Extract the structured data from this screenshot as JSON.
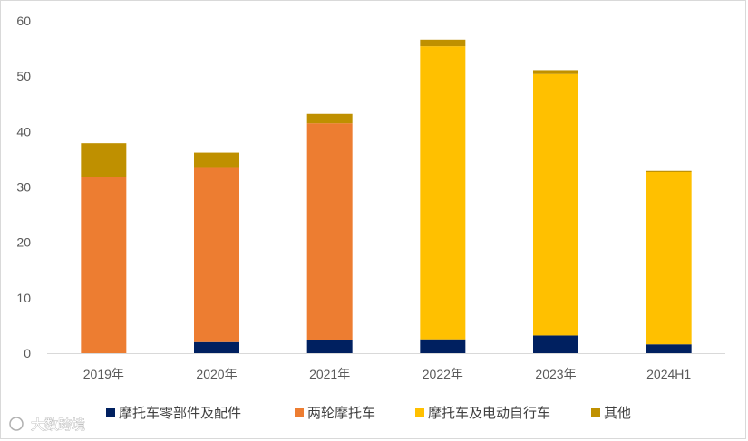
{
  "chart_data": {
    "type": "bar",
    "stacked": true,
    "title": "",
    "xlabel": "",
    "ylabel": "",
    "ylim": [
      0,
      60
    ],
    "yticks": [
      0,
      10,
      20,
      30,
      40,
      50,
      60
    ],
    "grid": false,
    "legend_position": "bottom",
    "categories": [
      "2019年",
      "2020年",
      "2021年",
      "2022年",
      "2023年",
      "2024H1"
    ],
    "series": [
      {
        "name": "摩托车零部件及配件",
        "color": "#002060",
        "values": [
          0,
          2,
          2.4,
          2.5,
          3.2,
          1.6
        ]
      },
      {
        "name": "两轮摩托车",
        "color": "#ED7D31",
        "values": [
          31.8,
          31.6,
          39.1,
          0,
          0,
          0
        ]
      },
      {
        "name": "摩托车及电动自行车",
        "color": "#FFC000",
        "values": [
          0,
          0,
          0,
          52.9,
          47.2,
          31.1
        ]
      },
      {
        "name": "其他",
        "color": "#BF9000",
        "values": [
          6.1,
          2.6,
          1.7,
          1.2,
          0.7,
          0.2
        ]
      }
    ]
  },
  "watermark": {
    "text": "大数跨境"
  }
}
